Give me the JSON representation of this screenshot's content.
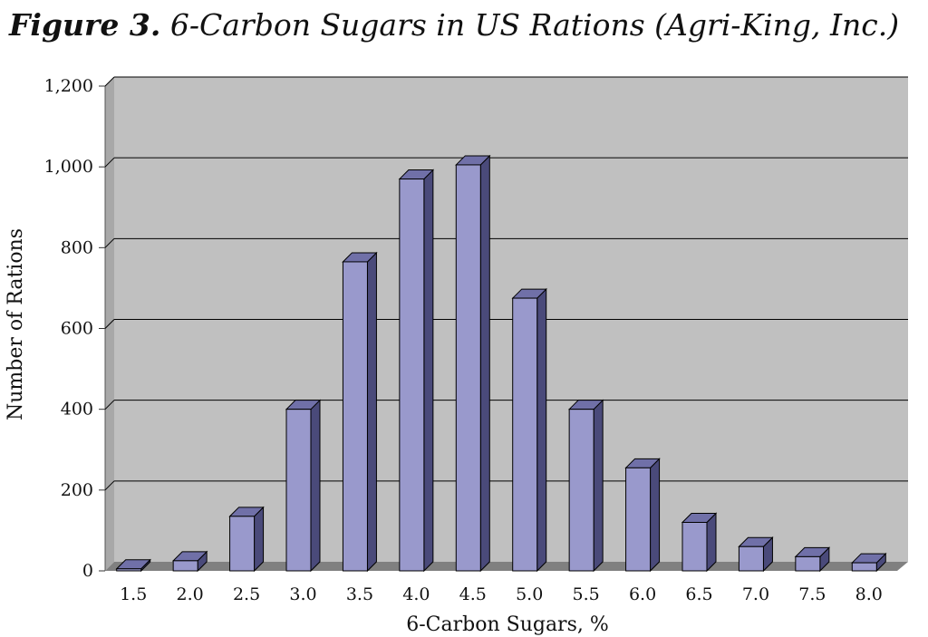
{
  "chart_data": {
    "type": "bar",
    "title_lead": "Figure 3.",
    "title": "6-Carbon Sugars in US Rations (Agri-King, Inc.)",
    "xlabel": "6-Carbon Sugars, %",
    "ylabel": "Number of Rations",
    "categories": [
      "1.5",
      "2.0",
      "2.5",
      "3.0",
      "3.5",
      "4.0",
      "4.5",
      "5.0",
      "5.5",
      "6.0",
      "6.5",
      "7.0",
      "7.5",
      "8.0"
    ],
    "values": [
      5,
      25,
      135,
      400,
      765,
      970,
      1005,
      675,
      400,
      255,
      120,
      60,
      35,
      20
    ],
    "ylim": [
      0,
      1200
    ],
    "y_ticks": [
      0,
      200,
      400,
      600,
      800,
      1000,
      1200
    ],
    "y_tick_labels": [
      "0",
      "200",
      "400",
      "600",
      "800",
      "1,000",
      "1,200"
    ],
    "grid": true,
    "style": "3d-column",
    "colors": {
      "bar_front": "#9999cc",
      "bar_side": "#4a4a7a",
      "bar_top": "#7070a8",
      "plot_wall": "#c0c0c0",
      "floor": "#808080",
      "gridline": "#000000"
    }
  }
}
